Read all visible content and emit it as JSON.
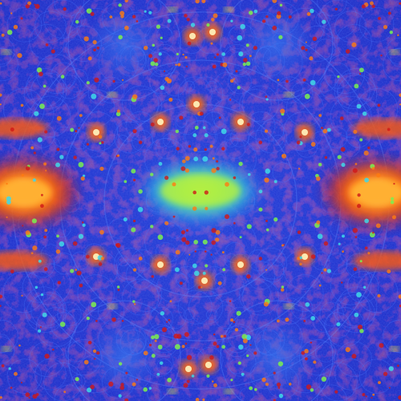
{
  "image": {
    "subject": "symmetric-fractal-pattern",
    "colors": {
      "deep_blue": "#1a2bd0",
      "mid_blue": "#2f5de8",
      "cyan": "#3fd8e8",
      "green": "#7af050",
      "yellow": "#f0e040",
      "orange": "#ff7a10",
      "red": "#d01818",
      "white_highlight": "#fff6c0"
    }
  }
}
